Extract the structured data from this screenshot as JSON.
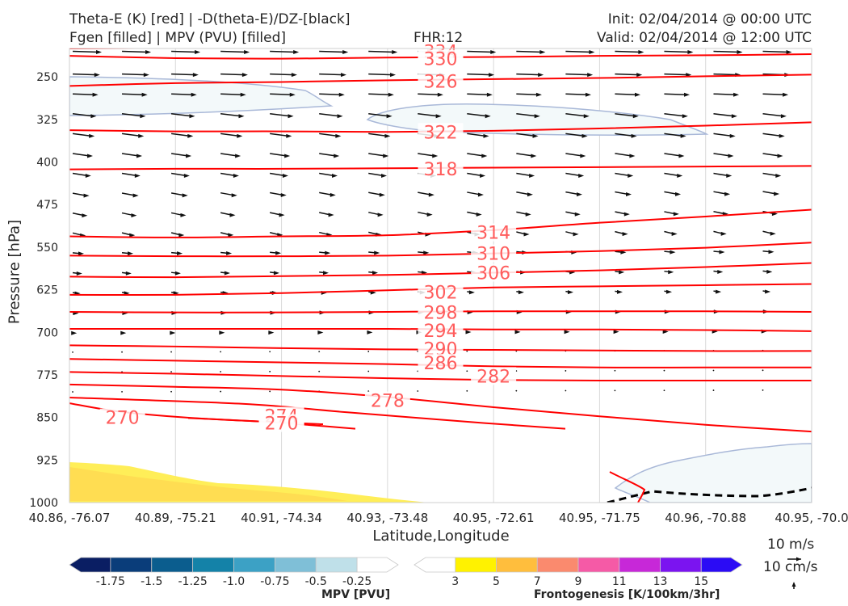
{
  "header": {
    "line1_left": "Theta-E (K) [red] | -D(theta-E)/DZ-[black]",
    "line2_left": "Fgen [filled] | MPV (PVU) [filled]",
    "fhr": "FHR:12",
    "init": "Init: 02/04/2014 @ 00:00 UTC",
    "valid": "Valid: 02/04/2014 @ 12:00 UTC"
  },
  "colors": {
    "theta_e": "#ff0000",
    "contour_label": "#ff5c5c",
    "vectors": "#111111",
    "mpv_edge": "#a9b8d8",
    "mpv_fill": "#f3f9fa",
    "fgen_3_5": "#ffee58",
    "fgen_5_7": "#ffbd49",
    "axis_text": "#262626"
  },
  "chart_data": {
    "type": "cross-section",
    "ylabel": "Pressure [hPa]",
    "xlabel": "Latitude,Longitude",
    "y_axis": {
      "inverted": true,
      "ylim": [
        1000,
        200
      ],
      "ticks": [
        250,
        325,
        400,
        475,
        550,
        625,
        700,
        775,
        850,
        925,
        1000
      ]
    },
    "x_ticks": [
      "40.86, -76.07",
      "40.89, -75.21",
      "40.91, -74.34",
      "40.93, -73.48",
      "40.95, -72.61",
      "40.95, -71.75",
      "40.96, -70.88",
      "40.95, -70.0"
    ],
    "grid": true,
    "theta_e_contours": [
      {
        "level": 334,
        "label_at": 3.5,
        "pressures": [
          200,
          199,
          199,
          199,
          198,
          197,
          196,
          195
        ]
      },
      {
        "level": 330,
        "label_at": 3.5,
        "pressures": [
          213,
          217,
          218,
          216,
          215,
          213,
          212,
          210
        ]
      },
      {
        "level": 326,
        "label_at": 3.5,
        "pressures": [
          266,
          261,
          259,
          256,
          254,
          252,
          249,
          246
        ]
      },
      {
        "level": 322,
        "label_at": 3.5,
        "pressures": [
          344,
          346,
          346,
          347,
          345,
          341,
          336,
          330
        ]
      },
      {
        "level": 318,
        "label_at": 3.5,
        "pressures": [
          413,
          412,
          412,
          411,
          410,
          409,
          408,
          407
        ]
      },
      {
        "level": 314,
        "label_at": 4.0,
        "pressures": [
          531,
          533,
          531,
          529,
          520,
          507,
          496,
          484
        ]
      },
      {
        "level": 310,
        "label_at": 4.0,
        "pressures": [
          565,
          566,
          566,
          565,
          561,
          557,
          551,
          542
        ]
      },
      {
        "level": 306,
        "label_at": 4.0,
        "pressures": [
          602,
          603,
          601,
          599,
          595,
          591,
          585,
          578
        ]
      },
      {
        "level": 302,
        "label_at": 3.5,
        "pressures": [
          634,
          634,
          631,
          626,
          621,
          619,
          617,
          615
        ]
      },
      {
        "level": 298,
        "label_at": 3.5,
        "pressures": [
          664,
          665,
          665,
          664,
          663,
          663,
          663,
          664
        ]
      },
      {
        "level": 294,
        "label_at": 3.5,
        "pressures": [
          694,
          694,
          694,
          694,
          695,
          695,
          696,
          698
        ]
      },
      {
        "level": 290,
        "label_at": 3.5,
        "pressures": [
          723,
          725,
          728,
          730,
          731,
          732,
          733,
          733
        ]
      },
      {
        "level": 286,
        "label_at": 3.5,
        "pressures": [
          747,
          750,
          753,
          756,
          760,
          762,
          762,
          762
        ]
      },
      {
        "level": 282,
        "label_at": 4.0,
        "pressures": [
          770,
          773,
          777,
          781,
          784,
          785,
          785,
          785
        ]
      },
      {
        "level": 278,
        "label_at": 3.0,
        "pressures": [
          792,
          796,
          801,
          814,
          832,
          848,
          863,
          875
        ]
      },
      {
        "level": 274,
        "label_at": 2.0,
        "pressures": [
          815,
          826,
          841,
          860,
          870
        ]
      },
      {
        "level": 270,
        "label_at": 0.5,
        "pressures": [
          825,
          840,
          852,
          862
        ]
      },
      {
        "level": 270,
        "label_at": 2.0,
        "pressures": [
          851,
          857,
          863,
          870
        ]
      }
    ],
    "theta_e_label_rows": [
      {
        "level": 334,
        "x": 3.5,
        "p": 205
      },
      {
        "level": 330,
        "x": 3.5,
        "p": 218
      },
      {
        "level": 326,
        "x": 3.5,
        "p": 258
      },
      {
        "level": 322,
        "x": 3.5,
        "p": 347
      },
      {
        "level": 318,
        "x": 3.5,
        "p": 412
      },
      {
        "level": 314,
        "x": 4.0,
        "p": 524
      },
      {
        "level": 310,
        "x": 4.0,
        "p": 561
      },
      {
        "level": 306,
        "x": 4.0,
        "p": 595
      },
      {
        "level": 302,
        "x": 3.5,
        "p": 629
      },
      {
        "level": 298,
        "x": 3.5,
        "p": 665
      },
      {
        "level": 294,
        "x": 3.5,
        "p": 697
      },
      {
        "level": 290,
        "x": 3.5,
        "p": 729
      },
      {
        "level": 286,
        "x": 3.5,
        "p": 754
      },
      {
        "level": 282,
        "x": 4.0,
        "p": 777
      },
      {
        "level": 278,
        "x": 3.0,
        "p": 820
      },
      {
        "level": 274,
        "x": 2.0,
        "p": 847
      },
      {
        "level": 270,
        "x": 0.5,
        "p": 850
      },
      {
        "level": 270,
        "x": 2.0,
        "p": 860
      }
    ],
    "mpv_colorbar": {
      "title": "MPV [PVU]",
      "labels": [
        "-1.75",
        "-1.5",
        "-1.25",
        "-1.0",
        "-0.75",
        "-0.5",
        "-0.25"
      ],
      "colors": [
        "#0a1e63",
        "#0a3d7a",
        "#0b5d8e",
        "#1482a8",
        "#3ca1c5",
        "#7fbfd7",
        "#bfe0e9",
        "#ffffff"
      ]
    },
    "fgen_colorbar": {
      "title": "Frontogenesis [K/100km/3hr]",
      "labels": [
        "3",
        "5",
        "7",
        "9",
        "11",
        "13",
        "15"
      ],
      "colors": [
        "#ffffff",
        "#fff200",
        "#ffbe3d",
        "#fa8a6e",
        "#f55aa6",
        "#c728d8",
        "#7b14f0",
        "#2b0bf5"
      ]
    },
    "reference_vector": {
      "u_label": "10 m/s",
      "w_label": "10 cm/s"
    }
  }
}
